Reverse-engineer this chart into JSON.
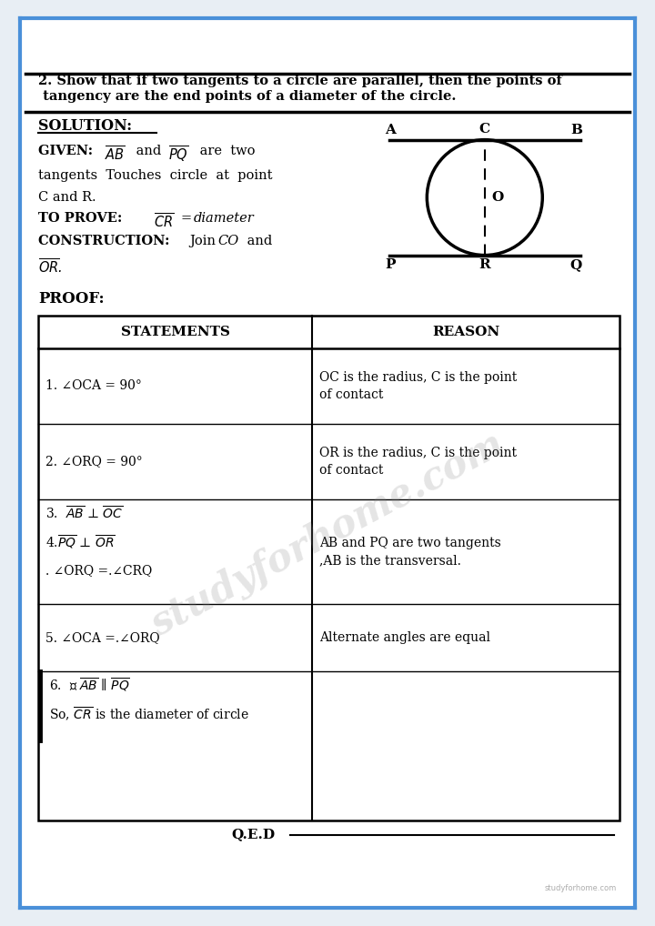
{
  "bg_color": "#e8eef4",
  "page_bg": "#ffffff",
  "border_color": "#4a90d9",
  "title_text_line1": "2. Show that if two tangents to a circle are parallel, then the points of",
  "title_text_line2": " tangency are the end points of a diameter of the circle.",
  "solution_label": "SOLUTION:",
  "proof_label": "PROOF:",
  "qed_text": "Q.E.D",
  "watermark_text": "studyforhome.com",
  "website_text": "studyforhome.com",
  "table_col_split": 0.475
}
